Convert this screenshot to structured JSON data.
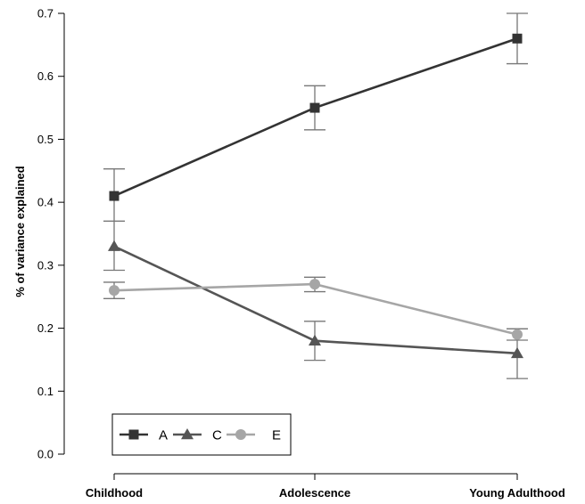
{
  "chart_data": {
    "type": "line",
    "title": "",
    "xlabel": "",
    "ylabel": "% of variance explained",
    "categories": [
      "Childhood",
      "Adolescence",
      "Young Adulthood"
    ],
    "ylim": [
      0,
      0.7
    ],
    "yticks": [
      "0.0",
      "0.1",
      "0.2",
      "0.3",
      "0.4",
      "0.5",
      "0.6",
      "0.7"
    ],
    "grid": false,
    "legend_position": "bottom-left",
    "series": [
      {
        "name": "A",
        "marker": "square",
        "color": "#333333",
        "values": [
          0.41,
          0.55,
          0.66
        ],
        "error_low": [
          0.37,
          0.515,
          0.62
        ],
        "error_high": [
          0.453,
          0.585,
          0.7
        ]
      },
      {
        "name": "C",
        "marker": "triangle",
        "color": "#555555",
        "values": [
          0.33,
          0.18,
          0.16
        ],
        "error_low": [
          0.292,
          0.149,
          0.12
        ],
        "error_high": [
          0.37,
          0.211,
          0.199
        ]
      },
      {
        "name": "E",
        "marker": "circle",
        "color": "#a6a6a6",
        "values": [
          0.26,
          0.27,
          0.19
        ],
        "error_low": [
          0.247,
          0.258,
          0.181
        ],
        "error_high": [
          0.273,
          0.281,
          0.199
        ]
      }
    ]
  }
}
